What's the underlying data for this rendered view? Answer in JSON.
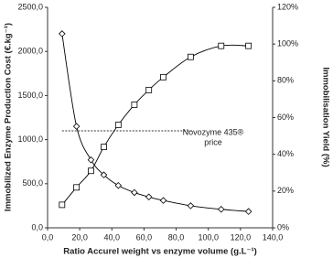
{
  "chart_data": {
    "type": "line",
    "x_label": "Ratio Accurel weight vs enzyme volume (g.L⁻¹)",
    "y_label": "Immobilized Enzyme Production Cost (€.kg⁻¹)",
    "y2_label": "Immobilisation Yield (%)",
    "x": [
      9,
      18,
      27,
      35,
      44,
      54,
      63,
      72,
      89,
      108,
      125
    ],
    "series": [
      {
        "marker": "diamond",
        "color": "#000000",
        "values": [
          2200,
          1150,
          770,
          600,
          480,
          400,
          350,
          310,
          250,
          210,
          185
        ]
      },
      {
        "marker": "square",
        "color": "#000000",
        "axis": "y2",
        "values": [
          12.5,
          22,
          31,
          44,
          56,
          67,
          75,
          82,
          93,
          99,
          99
        ]
      }
    ],
    "reference_line": {
      "value": 1100,
      "x": [
        9,
        90
      ]
    },
    "annotation_lines": [
      "Novozyme 435®",
      "price"
    ],
    "xlim": [
      0,
      140
    ],
    "xticks": [
      {
        "value": 0,
        "label": "0,0"
      },
      {
        "value": 20,
        "label": "20,0"
      },
      {
        "value": 40,
        "label": "40,0"
      },
      {
        "value": 60,
        "label": "60,0"
      },
      {
        "value": 80,
        "label": "80,0"
      },
      {
        "value": 100,
        "label": "100,0"
      },
      {
        "value": 120,
        "label": "120,0"
      },
      {
        "value": 140,
        "label": "140,0"
      }
    ],
    "ylim": [
      0,
      2500
    ],
    "yticks": [
      {
        "value": 0,
        "label": "0,0"
      },
      {
        "value": 500,
        "label": "500,0"
      },
      {
        "value": 1000,
        "label": "1000,0"
      },
      {
        "value": 1500,
        "label": "1500,0"
      },
      {
        "value": 2000,
        "label": "2000,0"
      },
      {
        "value": 2500,
        "label": "2500,0"
      }
    ],
    "y2lim": [
      0,
      120
    ],
    "y2ticks": [
      {
        "value": 0,
        "label": "0%"
      },
      {
        "value": 20,
        "label": "20%"
      },
      {
        "value": 40,
        "label": "40%"
      },
      {
        "value": 60,
        "label": "60%"
      },
      {
        "value": 80,
        "label": "80%"
      },
      {
        "value": 100,
        "label": "100%"
      },
      {
        "value": 120,
        "label": "120%"
      }
    ]
  }
}
